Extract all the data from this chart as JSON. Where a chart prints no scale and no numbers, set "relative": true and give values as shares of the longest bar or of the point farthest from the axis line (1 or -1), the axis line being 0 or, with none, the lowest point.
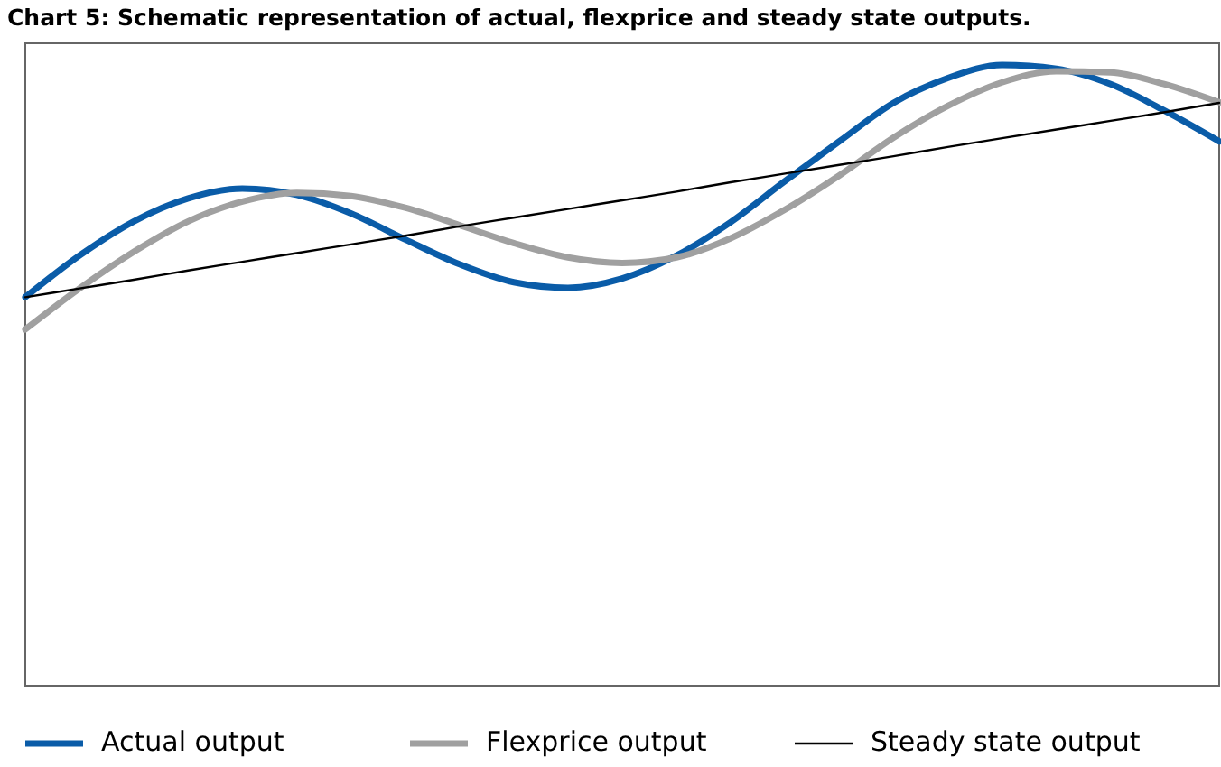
{
  "chart_data": {
    "type": "line",
    "title": "Chart 5: Schematic representation of actual, flexprice and steady state outputs.",
    "relative": true,
    "legend": "bottom",
    "categories": [
      null,
      null,
      null,
      null,
      null,
      null,
      null,
      null,
      null,
      null,
      null,
      null,
      null,
      null,
      null,
      null,
      null,
      null,
      null,
      null,
      null,
      null,
      null
    ],
    "series": [
      {
        "name": "Actual output",
        "color": "#0a5ca8",
        "values": [
          0.626,
          0.693,
          0.748,
          0.785,
          0.801,
          0.791,
          0.761,
          0.719,
          0.679,
          0.65,
          0.641,
          0.656,
          0.693,
          0.747,
          0.813,
          0.877,
          0.939,
          0.979,
          1,
          0.994,
          0.969,
          0.926,
          0.877
        ]
      },
      {
        "name": "Flexprice output",
        "color": "#a0a0a0",
        "values": [
          0.574,
          0.64,
          0.699,
          0.748,
          0.78,
          0.794,
          0.789,
          0.77,
          0.742,
          0.713,
          0.69,
          0.681,
          0.69,
          0.721,
          0.767,
          0.822,
          0.883,
          0.934,
          0.972,
          0.99,
          0.988,
          0.969,
          0.94
        ]
      },
      {
        "name": "Steady state output",
        "color": "#000000",
        "values": [
          0.626,
          0.64,
          0.654,
          0.669,
          0.683,
          0.697,
          0.711,
          0.725,
          0.74,
          0.754,
          0.768,
          0.782,
          0.796,
          0.811,
          0.825,
          0.839,
          0.853,
          0.868,
          0.882,
          0.896,
          0.91,
          0.924,
          0.939
        ]
      }
    ]
  }
}
